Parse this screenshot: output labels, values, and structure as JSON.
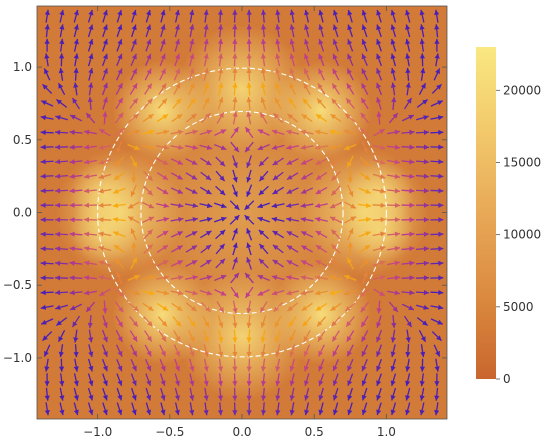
{
  "chart_data": {
    "type": "heatmap",
    "title": "",
    "xlabel": "",
    "ylabel": "",
    "xlim": [
      -1.42,
      1.42
    ],
    "ylim": [
      -1.42,
      1.42
    ],
    "x_ticks": [
      {
        "value": -1.0,
        "label": "−1.0"
      },
      {
        "value": -0.5,
        "label": "−0.5"
      },
      {
        "value": 0.0,
        "label": "0.0"
      },
      {
        "value": 0.5,
        "label": "0.5"
      },
      {
        "value": 1.0,
        "label": "1.0"
      }
    ],
    "y_ticks": [
      {
        "value": 1.0,
        "label": "1.0"
      },
      {
        "value": 0.5,
        "label": "0.5"
      },
      {
        "value": 0.0,
        "label": "0.0"
      },
      {
        "value": -0.5,
        "label": "−0.5"
      },
      {
        "value": -1.0,
        "label": "−1.0"
      }
    ],
    "field": {
      "description_of_overlay": "stream/vector arrows showing direction of a 2D vector field; arrow colour encodes magnitude",
      "arrow_grid_spacing": 0.1
    },
    "dashed_circles": [
      {
        "center": [
          0,
          0
        ],
        "radius": 1.0,
        "color": "#ffffff"
      },
      {
        "center": [
          0,
          0
        ],
        "radius": 0.7,
        "color": "#ffffff"
      }
    ],
    "colorbar": {
      "min": 0,
      "max": 23000,
      "ticks": [
        {
          "value": 0,
          "label": "0"
        },
        {
          "value": 5000,
          "label": "5000"
        },
        {
          "value": 10000,
          "label": "10000"
        },
        {
          "value": 15000,
          "label": "15000"
        },
        {
          "value": 20000,
          "label": "20000"
        }
      ],
      "colors": [
        "#c9662e",
        "#db8a3f",
        "#e8a957",
        "#f2c96c",
        "#fae882"
      ]
    },
    "arrow_colors": {
      "low": "#4a1fb8",
      "mid": "#c2408a",
      "high": "#ffb800"
    }
  }
}
